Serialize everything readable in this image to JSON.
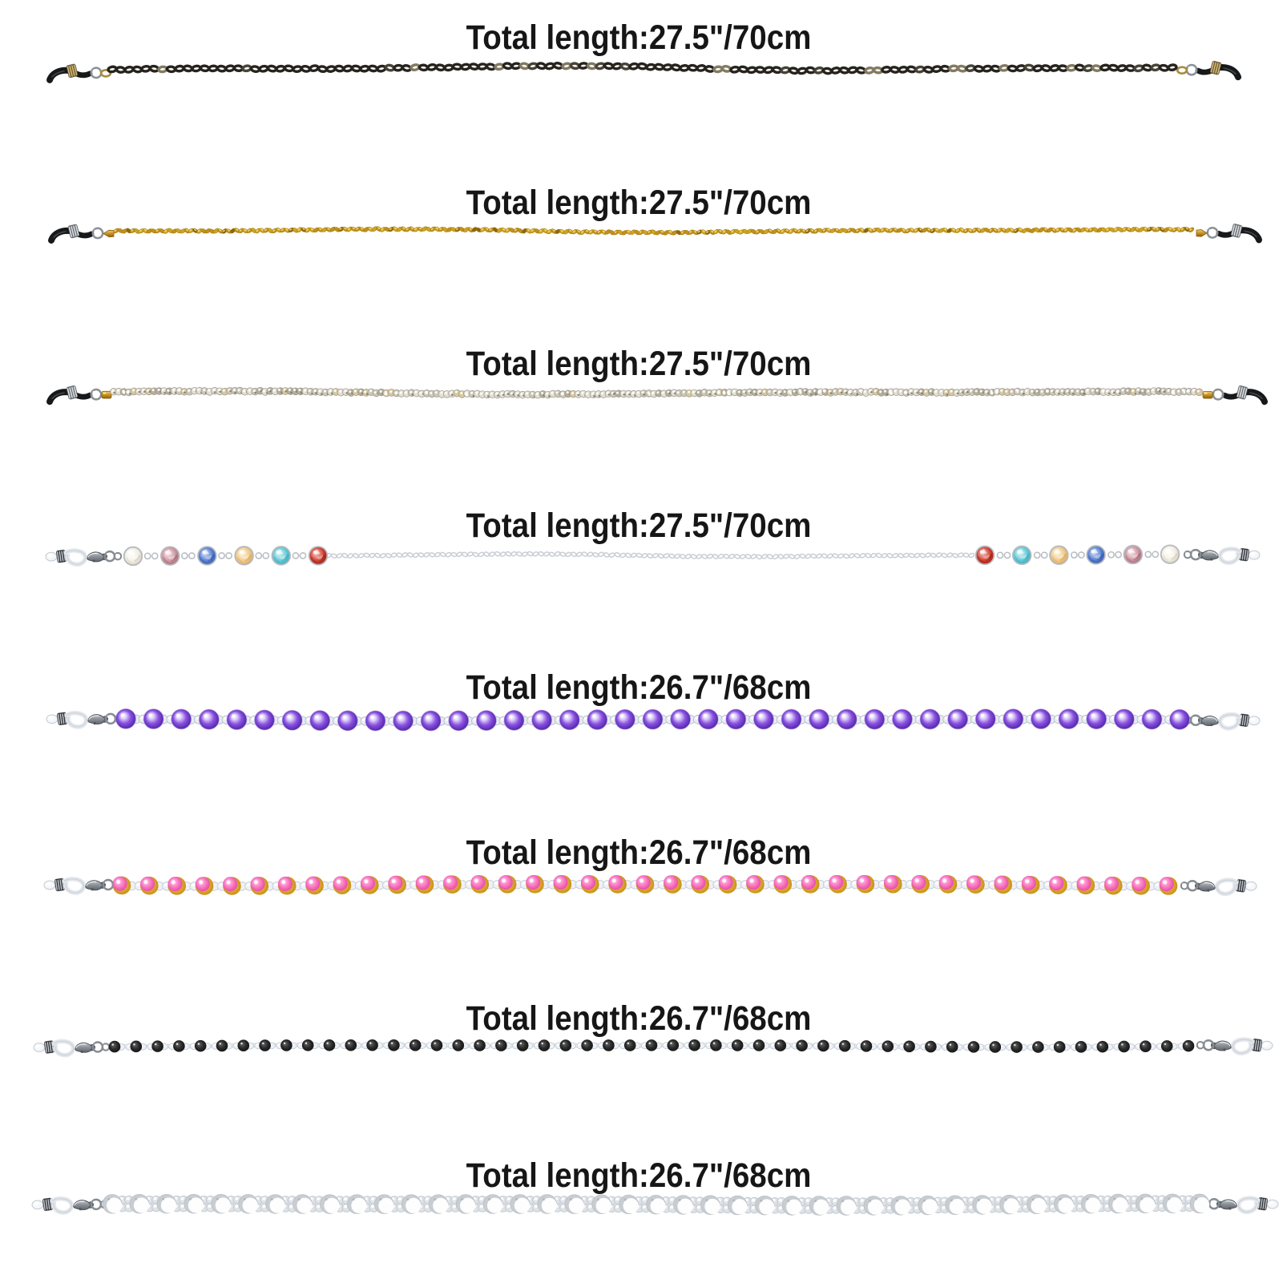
{
  "page": {
    "background": "#ffffff",
    "text_color": "#161616"
  },
  "products": [
    {
      "name": "gunmetal-link-chain",
      "label": "Total length:27.5\"/70cm",
      "style": "cable-dark",
      "colors": {
        "link": "#26231e",
        "link_mid": "#474338",
        "link_light": "#827a62",
        "gap": "#9a9279",
        "gap_light": "#c9c1a6",
        "tip": "#17181a",
        "crimp_a": "#d9c089",
        "crimp_b": "#77602c",
        "end_link": "#a98b3c"
      }
    },
    {
      "name": "gold-rope-chain",
      "label": "Total length:27.5\"/70cm",
      "style": "rope-gold",
      "colors": {
        "base": "#d2a41e",
        "alt": "#c3901a",
        "dark": "#8a6710",
        "light": "#f4dd7f",
        "tip": "#17181a",
        "crimp_a": "#e8eaec",
        "crimp_b": "#6d7278",
        "cone": "#c89122"
      }
    },
    {
      "name": "silver-sparkle-chain",
      "label": "Total length:27.5\"/70cm",
      "style": "rope-silver",
      "colors": {
        "base": "#e3dfd3",
        "alt": "#cdc8ba",
        "dark": "#85816f",
        "light": "#ffffff",
        "tint": "#d8c9a0",
        "tip": "#17181a",
        "crimp_a": "#e8eaec",
        "crimp_b": "#6d7278",
        "cone": "#c89122"
      }
    },
    {
      "name": "crystal-bead-silver-chain",
      "label": "Total length:27.5\"/70cm",
      "style": "crystal",
      "colors": {
        "chain": "#c9ced5",
        "bezel": "#b6bac0",
        "crystals": [
          "#f1ece0",
          "#c98f9b",
          "#5078cc",
          "#eec685",
          "#5cc6d2",
          "#c9372a"
        ],
        "crystals_light": [
          "#fbf9f3",
          "#e7c3ca",
          "#9cb4e8",
          "#f8e3b8",
          "#a8e3ea",
          "#e88a80"
        ],
        "crystals_dark": [
          "#c5bda9",
          "#96545f",
          "#2c4f9e",
          "#d19a45",
          "#2d9fae",
          "#8e140b"
        ],
        "tip": "#ffffff",
        "crimp_a": "#cfd4d9",
        "crimp_b": "#2f3337"
      }
    },
    {
      "name": "purple-pearl-bead-chain",
      "label": "Total length:26.7\"/68cm",
      "style": "bead-purple",
      "colors": {
        "bead_hi": "#ffffff",
        "bead_light": "#e2d5fb",
        "bead_mid": "#8a52e0",
        "bead_deep": "#5226aa",
        "bead_rim": "#9d86dc",
        "small": "#e9edf4",
        "small_edge": "#b6bdca",
        "tip": "#ffffff",
        "crimp_a": "#cfd4d9",
        "crimp_b": "#2f3337"
      }
    },
    {
      "name": "pink-gold-bead-chain",
      "label": "Total length:26.7\"/68cm",
      "style": "bead-pinkgold",
      "colors": {
        "gold_hi": "#f7dd8d",
        "gold_mid": "#daa52b",
        "gold_deep": "#b97f0e",
        "pink_hi": "#ffffff",
        "pink_light": "#ff9ad2",
        "pink_mid": "#f263b6",
        "pink_deep": "#d8359a",
        "small": "#eef1f6",
        "small_edge": "#c5ccd6",
        "tip": "#ffffff",
        "crimp_a": "#cfd4d9",
        "crimp_b": "#2f3337"
      }
    },
    {
      "name": "black-bead-chain",
      "label": "Total length:26.7\"/68cm",
      "style": "bead-black",
      "colors": {
        "bead_hi": "#6e6e6e",
        "bead_mid": "#2a2a2a",
        "bead_deep": "#0a0a0a",
        "small": "#eef1f6",
        "small_edge": "#c5ccd6",
        "chain": "#d3dae2",
        "tip": "#ffffff",
        "crimp_a": "#cfd4d9",
        "crimp_b": "#2f3337"
      }
    },
    {
      "name": "white-pearl-bead-chain",
      "label": "Total length:26.7\"/68cm",
      "style": "bead-pearl",
      "colors": {
        "pearl": "#c8cdd2",
        "pearl_hi": "#ffffff",
        "pearl_edge": "#b4bac0",
        "small": "#dfe3e8",
        "small_edge": "#c3c9cf",
        "tip": "#ffffff",
        "crimp_a": "#cfd4d9",
        "crimp_b": "#2f3337"
      }
    }
  ]
}
